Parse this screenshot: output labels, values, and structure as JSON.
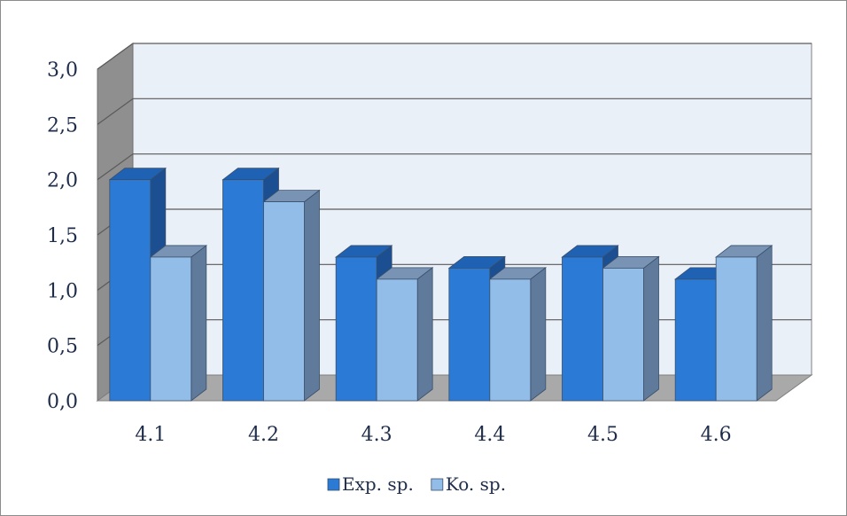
{
  "chart_data": {
    "type": "bar",
    "categories": [
      "4.1",
      "4.2",
      "4.3",
      "4.4",
      "4.5",
      "4.6"
    ],
    "series": [
      {
        "name": "Exp. sp.",
        "values": [
          2.0,
          2.0,
          1.3,
          1.2,
          1.3,
          1.1
        ]
      },
      {
        "name": "Ko. sp.",
        "values": [
          1.3,
          1.8,
          1.1,
          1.1,
          1.2,
          1.3
        ]
      }
    ],
    "title": "",
    "xlabel": "",
    "ylabel": "",
    "ylim": [
      0,
      3
    ],
    "y_ticks": [
      "0,0",
      "0,5",
      "1,0",
      "1,5",
      "2,0",
      "2,5",
      "3,0"
    ],
    "grid": true,
    "legend": "bottom",
    "style": "3d-clustered-column",
    "colors": {
      "series": [
        {
          "front": "#2b7bd6",
          "side": "#1b4f91",
          "top": "#1f62b4"
        },
        {
          "front": "#93bde9",
          "side": "#5f7a9a",
          "top": "#7893b4"
        }
      ],
      "back_wall": "#eaf0f8",
      "side_wall": "#8f8f8f",
      "floor": "#a9a9a9",
      "gridline": "#5a5a5a"
    }
  }
}
